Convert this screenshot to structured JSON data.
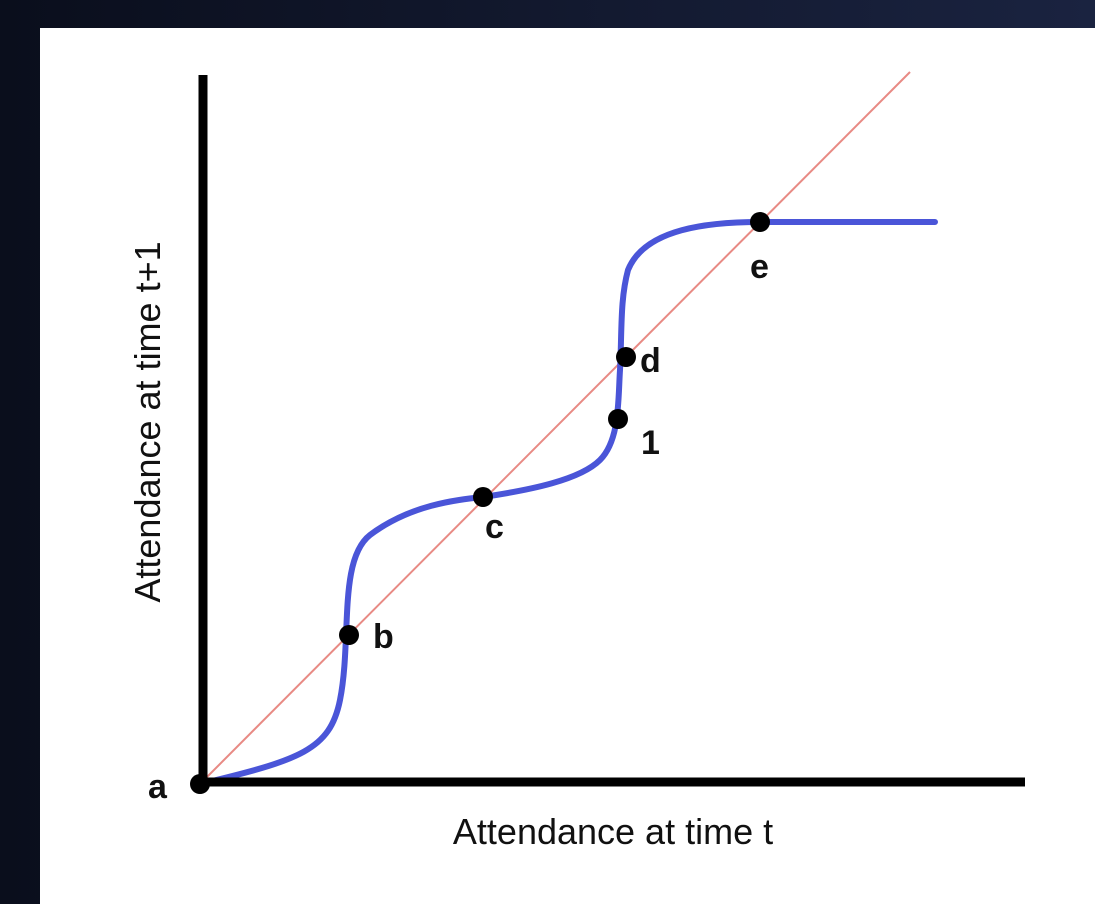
{
  "diagram": {
    "x_axis_label": "Attendance at time t",
    "y_axis_label": "Attendance at time t+1",
    "points": {
      "a": "a",
      "b": "b",
      "c": "c",
      "d": "d",
      "one": "1",
      "e": "e"
    },
    "colors": {
      "curve": "#4a55d8",
      "diagonal": "#e88a84",
      "axes": "#000000",
      "points": "#000000"
    }
  }
}
